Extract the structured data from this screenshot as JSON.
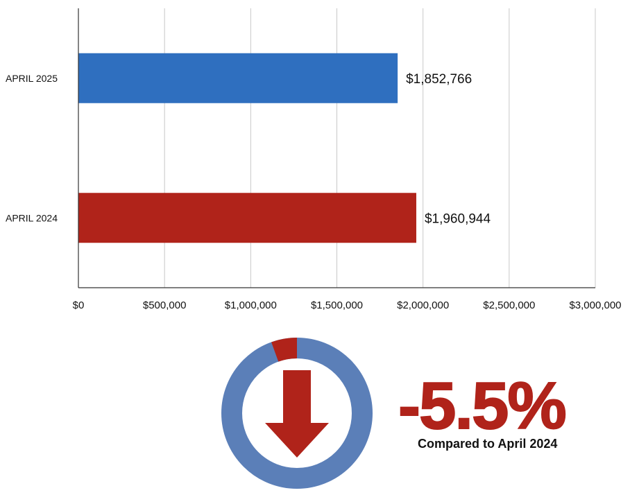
{
  "chart_data": {
    "type": "bar",
    "orientation": "horizontal",
    "categories": [
      "APRIL 2025",
      "APRIL 2024"
    ],
    "values": [
      1852766,
      1960944
    ],
    "value_labels": [
      "$1,852,766",
      "$1,960,944"
    ],
    "colors": [
      "#2f6fbf",
      "#b0231a"
    ],
    "xlim": [
      0,
      3000000
    ],
    "x_ticks": [
      "$0",
      "$500,000",
      "$1,000,000",
      "$1,500,000",
      "$2,000,000",
      "$2,500,000",
      "$3,000,000"
    ],
    "grid": true,
    "title": "",
    "xlabel": "",
    "ylabel": ""
  },
  "kpi": {
    "change_fraction": 0.055,
    "value": "-5.5%",
    "caption": "Compared to April 2024",
    "ring_color": "#5b7fb8",
    "accent_color": "#b0231a",
    "icon": "arrow-down-icon"
  }
}
